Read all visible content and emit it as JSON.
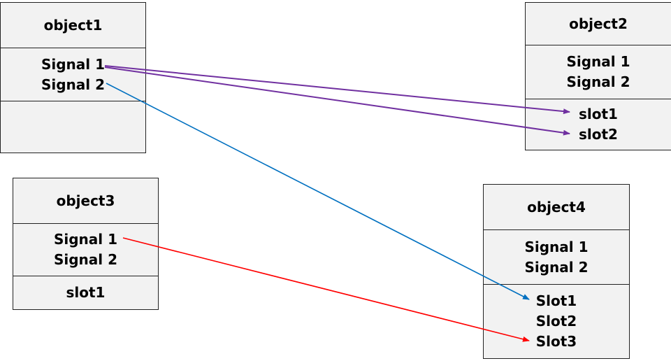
{
  "objects": {
    "object1": {
      "title": "object1",
      "signals": [
        "Signal 1",
        "Signal 2"
      ],
      "slots": []
    },
    "object2": {
      "title": "object2",
      "signals": [
        "Signal 1",
        "Signal 2"
      ],
      "slots": [
        "slot1",
        "slot2"
      ]
    },
    "object3": {
      "title": "object3",
      "signals": [
        "Signal 1",
        "Signal 2"
      ],
      "slots": [
        "slot1"
      ]
    },
    "object4": {
      "title": "object4",
      "signals": [
        "Signal 1",
        "Signal 2"
      ],
      "slots": [
        "Slot1",
        "Slot2",
        "Slot3"
      ]
    }
  },
  "connections": [
    {
      "from": "object1.Signal 1",
      "to": "object2.slot1",
      "color": "#7030A0"
    },
    {
      "from": "object1.Signal 1",
      "to": "object2.slot2",
      "color": "#7030A0"
    },
    {
      "from": "object1.Signal 2",
      "to": "object4.Slot1",
      "color": "#0070C0"
    },
    {
      "from": "object3.Signal 1",
      "to": "object4.Slot3",
      "color": "#FF0000"
    }
  ]
}
